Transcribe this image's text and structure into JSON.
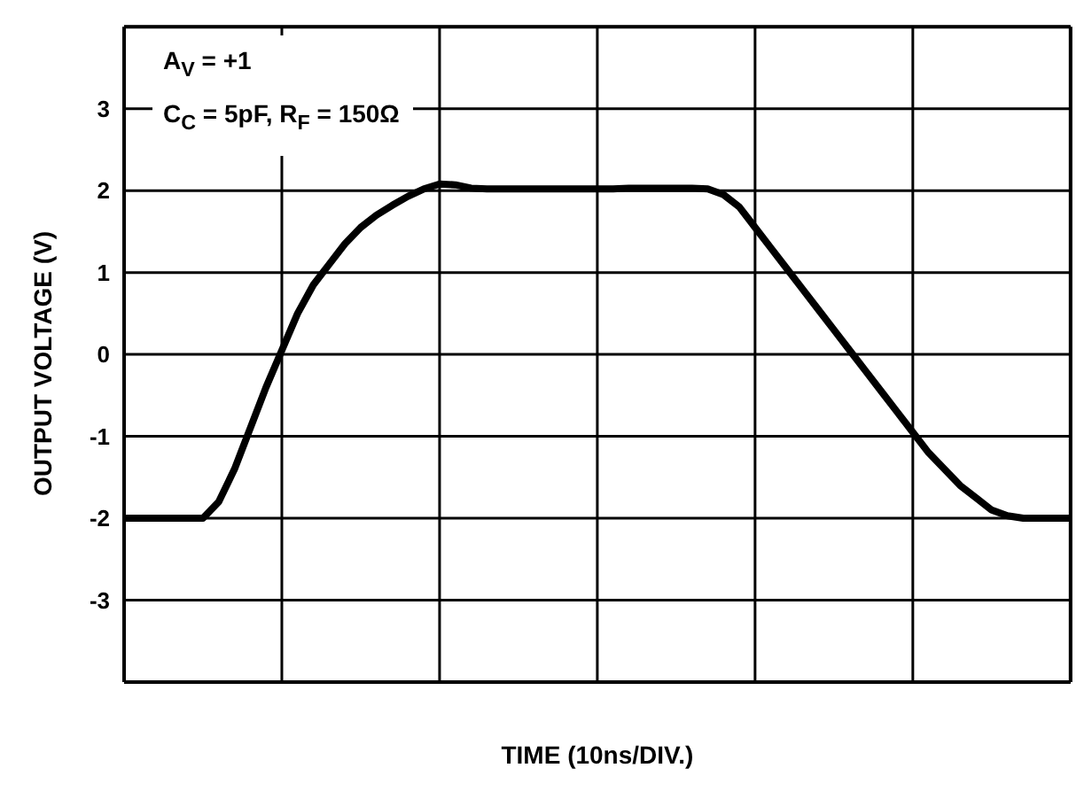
{
  "chart_data": {
    "type": "line",
    "xlabel": "TIME (10ns/DIV.)",
    "ylabel": "OUTPUT VOLTAGE (V)",
    "annotations": [
      "A$_{V}$ = +1",
      "C$_{C}$ = 5pF, R$_{F}$ = 150Ω"
    ],
    "categories": [
      null,
      null,
      null,
      null,
      null,
      null,
      null,
      null,
      null,
      null,
      null,
      null,
      null,
      null,
      null,
      null,
      null,
      null,
      null,
      null,
      null,
      null,
      null,
      null,
      null,
      null,
      null,
      null,
      null,
      null,
      null,
      null,
      null,
      null,
      null,
      null,
      null,
      null,
      null,
      null,
      null,
      null,
      null,
      null,
      null,
      null,
      null,
      null,
      null,
      null,
      null,
      null,
      null,
      null,
      null,
      null,
      null,
      null,
      null,
      null,
      null
    ],
    "series": [
      {
        "color": "#000000",
        "values": [
          -2,
          -2,
          -2,
          -2,
          -2,
          -2,
          -1.8,
          -1.4,
          -0.9,
          -0.4,
          0.05,
          0.5,
          0.85,
          1.1,
          1.35,
          1.55,
          1.7,
          1.82,
          1.93,
          2.02,
          2.08,
          2.07,
          2.03,
          2.02,
          2.02,
          2.02,
          2.02,
          2.02,
          2.02,
          2.02,
          2.02,
          2.02,
          2.03,
          2.03,
          2.03,
          2.03,
          2.03,
          2.02,
          1.95,
          1.8,
          1.55,
          1.3,
          1.05,
          0.8,
          0.55,
          0.3,
          0.05,
          -0.2,
          -0.45,
          -0.7,
          -0.95,
          -1.2,
          -1.4,
          -1.6,
          -1.75,
          -1.9,
          -1.97,
          -2,
          -2,
          -2,
          -2
        ]
      }
    ],
    "ylim": [
      -4,
      4
    ],
    "yticks": [
      {
        "value": -4,
        "label": null
      },
      -3,
      -2,
      -1,
      0,
      1,
      2,
      3,
      {
        "value": 4,
        "label": null
      }
    ],
    "grid": true,
    "legend": false,
    "marker": "none",
    "line_style": "solid"
  }
}
